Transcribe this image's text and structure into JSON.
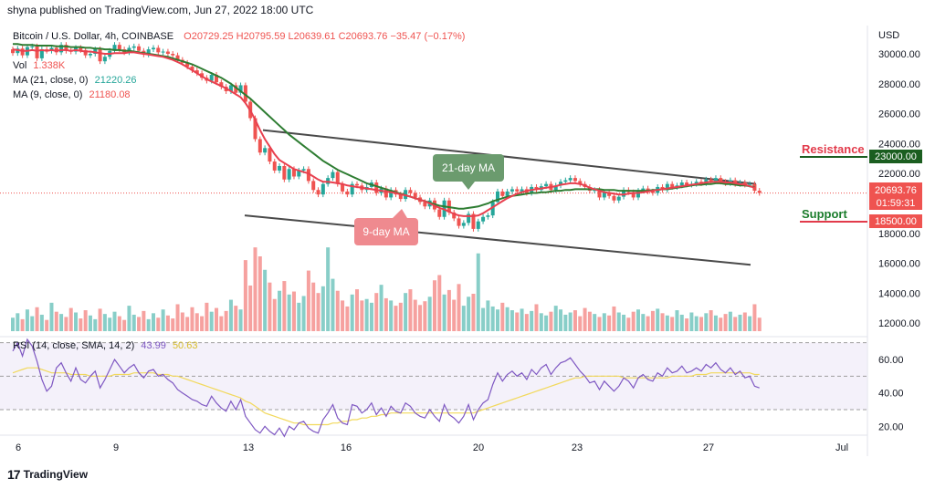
{
  "header": {
    "text": "shyna published on TradingView.com, Jun 27, 2022 18:00 UTC"
  },
  "legend": {
    "symbol": "Bitcoin / U.S. Dollar, 4h, COINBASE",
    "ohlc": "O20729.25  H20795.59  L20639.61  C20693.76  −35.47 (−0.17%)",
    "vol_label": "Vol",
    "vol_value": "1.338K",
    "ma21_label": "MA (21, close, 0)",
    "ma21_value": "21220.26",
    "ma9_label": "MA (9, close, 0)",
    "ma9_value": "21180.08",
    "rsi_label": "RSI (14, close, SMA, 14, 2)",
    "rsi_value": "43.99",
    "rsi_sma_value": "50.63"
  },
  "currency": "USD",
  "price_labels": {
    "current": "20693.76",
    "countdown": "01:59:31",
    "resistance_text": "Resistance",
    "resistance_value": "23000.00",
    "support_text": "Support",
    "support_value": "18500.00"
  },
  "annotations": {
    "ma21": "21-day MA",
    "ma9": "9-day MA"
  },
  "footer": {
    "brand": "TradingView"
  },
  "colors": {
    "up": "#26a69a",
    "down": "#ef5350",
    "ma9": "#e8404f",
    "ma21": "#2e7d32",
    "rsi": "#7e57c2",
    "rsi_sma": "#f2d95c",
    "channel": "#4a4a4a"
  },
  "chart_data": {
    "type": "candlestick",
    "price_axis": {
      "ticks": [
        30000,
        28000,
        26000,
        24000,
        22000,
        20000,
        18000,
        16000,
        14000,
        12000
      ],
      "labels": [
        "30000.00",
        "28000.00",
        "26000.00",
        "24000.00",
        "22000.00",
        "20000.00",
        "18000.00",
        "16000.00",
        "14000.00",
        "12000.00"
      ]
    },
    "rsi_axis": {
      "ticks": [
        60,
        40,
        20
      ],
      "labels": [
        "60.00",
        "40.00",
        "20.00"
      ],
      "bands": [
        70,
        50,
        30
      ]
    },
    "x_ticks": [
      "6",
      "9",
      "13",
      "16",
      "20",
      "23",
      "27",
      "Jul"
    ],
    "close": [
      30050,
      30350,
      29900,
      30450,
      30500,
      29700,
      30300,
      30200,
      30400,
      30100,
      30600,
      30200,
      30150,
      30400,
      30250,
      29900,
      30000,
      30300,
      29500,
      29800,
      30200,
      30600,
      30300,
      30100,
      30400,
      30500,
      30200,
      29950,
      30300,
      30400,
      30100,
      30150,
      30000,
      29900,
      29600,
      29400,
      29150,
      28900,
      28700,
      28400,
      28200,
      28600,
      28100,
      27800,
      27500,
      27900,
      27400,
      27900,
      26800,
      25700,
      24300,
      23400,
      23700,
      22800,
      22200,
      22500,
      21600,
      22300,
      21800,
      22200,
      22300,
      21500,
      20900,
      20600,
      21300,
      21700,
      22100,
      21300,
      20800,
      20600,
      21300,
      21200,
      20900,
      21100,
      21400,
      20700,
      21000,
      20400,
      20900,
      20600,
      20300,
      20900,
      20700,
      20400,
      20100,
      19800,
      20200,
      19600,
      19100,
      20200,
      19400,
      19000,
      18500,
      18700,
      19300,
      18300,
      18800,
      19100,
      19200,
      20100,
      20800,
      20500,
      20800,
      20950,
      20800,
      20950,
      20700,
      21100,
      20900,
      21150,
      21300,
      20900,
      21200,
      21450,
      21550,
      21700,
      21500,
      21300,
      21100,
      20850,
      20900,
      20400,
      20750,
      20500,
      20200,
      20450,
      20900,
      20750,
      20400,
      20850,
      21000,
      20800,
      20700,
      21100,
      20900,
      21300,
      21100,
      21200,
      21400,
      21250,
      21300,
      21450,
      21350,
      21600,
      21500,
      21700,
      21450,
      21350,
      21550,
      21300,
      21400,
      21250,
      21300,
      20850,
      20700
    ],
    "ma9": [
      30300,
      30250,
      30200,
      30200,
      30250,
      30200,
      30250,
      30200,
      30250,
      30200,
      30250,
      30250,
      30200,
      30250,
      30200,
      30150,
      30150,
      30100,
      30050,
      30000,
      30000,
      30050,
      30050,
      30050,
      30100,
      30100,
      30050,
      30000,
      29950,
      29900,
      29850,
      29800,
      29700,
      29600,
      29450,
      29300,
      29100,
      28900,
      28700,
      28500,
      28300,
      28150,
      28000,
      27850,
      27700,
      27500,
      27300,
      27100,
      26700,
      26200,
      25600,
      24900,
      24300,
      23800,
      23300,
      22900,
      22700,
      22500,
      22300,
      22200,
      22100,
      22000,
      21800,
      21600,
      21450,
      21450,
      21400,
      21350,
      21300,
      21200,
      21150,
      21100,
      21050,
      21000,
      20950,
      20900,
      20850,
      20800,
      20750,
      20700,
      20600,
      20550,
      20450,
      20350,
      20250,
      20150,
      20000,
      19850,
      19700,
      19600,
      19450,
      19300,
      19200,
      19150,
      19150,
      19150,
      19200,
      19350,
      19550,
      19750,
      19950,
      20150,
      20350,
      20500,
      20650,
      20750,
      20850,
      20900,
      20950,
      21000,
      21050,
      21100,
      21150,
      21250,
      21300,
      21350,
      21350,
      21300,
      21200,
      21050,
      20950,
      20850,
      20750,
      20700,
      20650,
      20600,
      20600,
      20650,
      20700,
      20700,
      20750,
      20800,
      20850,
      20900,
      20950,
      21000,
      21050,
      21100,
      21150,
      21200,
      21250,
      21300,
      21350,
      21400,
      21450,
      21450,
      21450,
      21400,
      21400,
      21350,
      21300,
      21250,
      21150,
      21050
    ],
    "ma21": [
      30650,
      30650,
      30600,
      30600,
      30600,
      30550,
      30550,
      30550,
      30550,
      30500,
      30500,
      30500,
      30450,
      30450,
      30450,
      30400,
      30400,
      30350,
      30350,
      30300,
      30300,
      30250,
      30250,
      30200,
      30200,
      30150,
      30100,
      30050,
      30000,
      29950,
      29900,
      29850,
      29800,
      29700,
      29600,
      29500,
      29400,
      29300,
      29150,
      29000,
      28850,
      28700,
      28550,
      28400,
      28200,
      28000,
      27750,
      27500,
      27250,
      27000,
      26700,
      26400,
      26100,
      25800,
      25500,
      25200,
      24900,
      24600,
      24350,
      24100,
      23850,
      23600,
      23350,
      23100,
      22850,
      22650,
      22450,
      22250,
      22100,
      21950,
      21800,
      21650,
      21500,
      21350,
      21250,
      21150,
      21050,
      20950,
      20850,
      20750,
      20650,
      20550,
      20450,
      20350,
      20250,
      20150,
      20050,
      19950,
      19850,
      19800,
      19750,
      19700,
      19650,
      19650,
      19700,
      19750,
      19800,
      19900,
      20000,
      20150,
      20250,
      20350,
      20450,
      20500,
      20550,
      20600,
      20650,
      20700,
      20700,
      20750,
      20750,
      20800,
      20850,
      20850,
      20900,
      20900,
      20950,
      20950,
      20950,
      20950,
      20950,
      20950,
      20900,
      20900,
      20900,
      20850,
      20850,
      20850,
      20850,
      20850,
      20850,
      20850,
      20900,
      20900,
      20950,
      20950,
      21000,
      21050,
      21100,
      21150,
      21200,
      21250,
      21250,
      21300,
      21300,
      21350,
      21350,
      21300,
      21300,
      21250,
      21200,
      21200,
      21150,
      21100
    ],
    "volume": [
      1.8,
      2.4,
      1.6,
      2.9,
      2.0,
      3.2,
      2.2,
      1.5,
      3.8,
      2.6,
      2.3,
      1.9,
      3.1,
      2.5,
      1.7,
      2.8,
      2.1,
      1.6,
      3.0,
      2.3,
      1.8,
      2.6,
      2.0,
      1.5,
      3.4,
      2.2,
      1.9,
      2.7,
      1.6,
      2.4,
      1.8,
      2.9,
      2.1,
      1.7,
      3.6,
      2.5,
      1.9,
      3.2,
      2.4,
      2.0,
      3.8,
      2.6,
      3.1,
      2.0,
      2.7,
      4.2,
      3.4,
      2.9,
      9.5,
      6.1,
      11.2,
      10.0,
      8.2,
      6.5,
      4.3,
      5.4,
      6.7,
      4.9,
      5.3,
      3.8,
      4.7,
      8.1,
      6.5,
      5.1,
      6.0,
      11.2,
      7.0,
      5.4,
      4.1,
      3.3,
      4.9,
      5.6,
      4.1,
      4.3,
      3.8,
      5.1,
      6.2,
      4.4,
      4.1,
      3.4,
      3.8,
      5.1,
      5.6,
      4.2,
      3.5,
      4.0,
      4.6,
      6.8,
      7.5,
      4.9,
      5.5,
      4.2,
      6.3,
      3.4,
      4.6,
      5.0,
      10.4,
      3.1,
      4.1,
      3.3,
      2.9,
      3.8,
      3.2,
      2.8,
      2.5,
      3.0,
      2.3,
      2.7,
      3.6,
      2.4,
      2.1,
      2.6,
      3.4,
      2.9,
      2.2,
      2.5,
      2.8,
      2.0,
      3.1,
      2.6,
      2.3,
      1.9,
      2.4,
      2.1,
      3.3,
      2.5,
      2.2,
      1.8,
      2.6,
      2.9,
      2.3,
      2.0,
      2.7,
      3.0,
      2.4,
      2.1,
      1.9,
      2.8,
      2.2,
      1.7,
      2.5,
      2.0,
      1.9,
      2.4,
      2.8,
      2.1,
      1.8,
      2.3,
      2.6,
      1.9,
      2.2,
      2.5,
      2.0,
      3.6,
      1.8
    ],
    "rsi": [
      65,
      70,
      62,
      72,
      68,
      59,
      48,
      41,
      44,
      55,
      58,
      52,
      47,
      55,
      48,
      46,
      50,
      53,
      43,
      48,
      54,
      60,
      56,
      52,
      55,
      57,
      52,
      49,
      53,
      54,
      50,
      51,
      48,
      46,
      42,
      40,
      38,
      36,
      35,
      33,
      32,
      38,
      34,
      31,
      29,
      35,
      30,
      36,
      26,
      22,
      18,
      16,
      20,
      17,
      15,
      19,
      14,
      20,
      18,
      22,
      23,
      19,
      17,
      16,
      24,
      28,
      33,
      25,
      22,
      21,
      33,
      32,
      28,
      30,
      34,
      27,
      31,
      26,
      32,
      29,
      28,
      34,
      32,
      28,
      26,
      25,
      30,
      26,
      23,
      33,
      27,
      25,
      22,
      26,
      33,
      24,
      30,
      34,
      36,
      45,
      52,
      47,
      51,
      53,
      50,
      52,
      48,
      54,
      51,
      55,
      57,
      51,
      55,
      58,
      59,
      61,
      57,
      53,
      50,
      46,
      47,
      42,
      47,
      44,
      41,
      44,
      49,
      47,
      43,
      49,
      51,
      48,
      47,
      52,
      50,
      55,
      52,
      53,
      56,
      52,
      53,
      55,
      53,
      57,
      55,
      58,
      54,
      52,
      55,
      51,
      53,
      49,
      50,
      44,
      43
    ],
    "rsi_sma": [
      52,
      53,
      54,
      55,
      55,
      55,
      54,
      53,
      52,
      52,
      52,
      52,
      51,
      51,
      51,
      51,
      50,
      50,
      50,
      50,
      50,
      51,
      51,
      51,
      51,
      52,
      52,
      52,
      52,
      52,
      51,
      51,
      51,
      50,
      50,
      49,
      48,
      47,
      46,
      45,
      44,
      43,
      42,
      41,
      40,
      39,
      38,
      37,
      35,
      34,
      32,
      30,
      28,
      27,
      26,
      25,
      24,
      23,
      22,
      22,
      21,
      21,
      21,
      21,
      21,
      21,
      22,
      22,
      23,
      23,
      24,
      24,
      25,
      25,
      26,
      26,
      27,
      27,
      28,
      28,
      28,
      28,
      28,
      28,
      28,
      28,
      28,
      28,
      28,
      28,
      28,
      28,
      28,
      28,
      28,
      28,
      29,
      30,
      31,
      32,
      33,
      34,
      35,
      36,
      37,
      38,
      39,
      40,
      41,
      42,
      43,
      44,
      45,
      46,
      47,
      48,
      49,
      49,
      50,
      50,
      50,
      50,
      50,
      50,
      50,
      50,
      49,
      49,
      49,
      49,
      49,
      49,
      49,
      49,
      49,
      49,
      50,
      50,
      50,
      50,
      50,
      51,
      51,
      51,
      52,
      52,
      52,
      52,
      52,
      52,
      52,
      52,
      52,
      51,
      51
    ]
  }
}
